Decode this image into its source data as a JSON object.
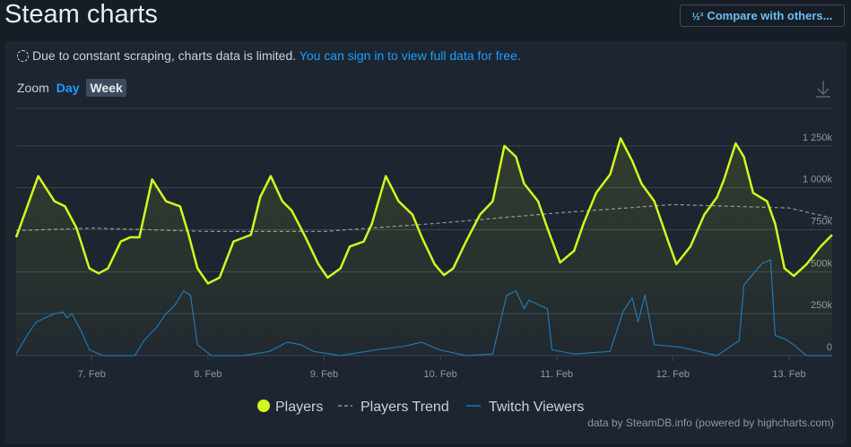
{
  "ui": {
    "title": "Steam charts",
    "compare_icon": "½³",
    "compare_button": "Compare with others...",
    "notice": "Due to constant scraping, charts data is limited.",
    "notice_link": "You can sign in to view full data for free.",
    "zoom_label": "Zoom",
    "zoom_options": [
      "Day",
      "Week"
    ]
  },
  "chart_data": {
    "type": "line",
    "grid": true,
    "legend": "bottom",
    "credit": "data by SteamDB.info (powered by highcharts.com)",
    "xlim": [
      6.35,
      13.37
    ],
    "ylim": [
      0,
      1500000
    ],
    "xticks": [
      {
        "value": 7,
        "label": "7. Feb"
      },
      {
        "value": 8,
        "label": "8. Feb"
      },
      {
        "value": 9,
        "label": "9. Feb"
      },
      {
        "value": 10,
        "label": "10. Feb"
      },
      {
        "value": 11,
        "label": "11. Feb"
      },
      {
        "value": 12,
        "label": "12. Feb"
      },
      {
        "value": 13,
        "label": "13. Feb"
      }
    ],
    "yticks": [
      0,
      {
        "value": 250000,
        "label": "250k"
      },
      {
        "value": 500000,
        "label": "500k"
      },
      {
        "value": 750000,
        "label": "750k"
      },
      {
        "value": 1000000,
        "label": "1 000k"
      },
      {
        "value": 1250000,
        "label": "1 250k"
      }
    ],
    "series": [
      {
        "name": "Players",
        "color": "#d4f81c",
        "style": "solid",
        "fill": true,
        "x": [
          6.35,
          6.54,
          6.68,
          6.77,
          6.87,
          6.98,
          7.06,
          7.14,
          7.25,
          7.33,
          7.41,
          7.52,
          7.64,
          7.76,
          7.83,
          7.91,
          8.0,
          8.1,
          8.22,
          8.37,
          8.45,
          8.54,
          8.64,
          8.72,
          8.84,
          8.95,
          9.03,
          9.14,
          9.22,
          9.34,
          9.41,
          9.53,
          9.64,
          9.76,
          9.84,
          9.95,
          10.03,
          10.11,
          10.22,
          10.34,
          10.45,
          10.55,
          10.65,
          10.72,
          10.84,
          10.92,
          11.03,
          11.15,
          11.23,
          11.34,
          11.46,
          11.55,
          11.65,
          11.73,
          11.84,
          11.96,
          12.03,
          12.15,
          12.27,
          12.38,
          12.44,
          12.54,
          12.61,
          12.69,
          12.81,
          12.88,
          12.96,
          13.04,
          13.15,
          13.27,
          13.37
        ],
        "values": [
          705000,
          1070000,
          920000,
          890000,
          760000,
          520000,
          490000,
          520000,
          680000,
          705000,
          705000,
          1050000,
          920000,
          890000,
          730000,
          520000,
          430000,
          465000,
          680000,
          720000,
          945000,
          1070000,
          920000,
          865000,
          705000,
          545000,
          465000,
          520000,
          650000,
          680000,
          785000,
          1070000,
          920000,
          840000,
          705000,
          545000,
          480000,
          520000,
          680000,
          840000,
          920000,
          1250000,
          1185000,
          1025000,
          920000,
          760000,
          555000,
          625000,
          785000,
          970000,
          1080000,
          1295000,
          1160000,
          1025000,
          920000,
          680000,
          545000,
          650000,
          840000,
          945000,
          1050000,
          1265000,
          1185000,
          970000,
          920000,
          785000,
          520000,
          475000,
          545000,
          650000,
          720000
        ]
      },
      {
        "name": "Players Trend",
        "color": "#8f98a0",
        "style": "dashed",
        "fill": false,
        "x": [
          6.35,
          7,
          8,
          9,
          10,
          11,
          12,
          13,
          13.37
        ],
        "values": [
          745000,
          760000,
          740000,
          740000,
          790000,
          850000,
          900000,
          880000,
          820000
        ]
      },
      {
        "name": "Twitch Viewers",
        "color": "#1a73b8",
        "style": "solid",
        "fill": false,
        "x": [
          6.35,
          6.44,
          6.52,
          6.6,
          6.68,
          6.75,
          6.79,
          6.83,
          6.91,
          6.98,
          7.1,
          7.22,
          7.37,
          7.45,
          7.56,
          7.64,
          7.72,
          7.79,
          7.85,
          7.91,
          8.03,
          8.3,
          8.53,
          8.68,
          8.8,
          8.91,
          9.14,
          9.45,
          9.68,
          9.84,
          9.99,
          10.22,
          10.45,
          10.57,
          10.65,
          10.72,
          10.76,
          10.84,
          10.92,
          10.96,
          11.15,
          11.46,
          11.57,
          11.65,
          11.7,
          11.76,
          11.84,
          12.07,
          12.38,
          12.57,
          12.61,
          12.73,
          12.77,
          12.84,
          12.88,
          12.96,
          13.04,
          13.15,
          13.37
        ],
        "values": [
          10000,
          115000,
          200000,
          225000,
          250000,
          260000,
          225000,
          250000,
          145000,
          35000,
          0,
          0,
          0,
          90000,
          170000,
          250000,
          305000,
          385000,
          360000,
          65000,
          0,
          0,
          25000,
          80000,
          65000,
          25000,
          0,
          35000,
          55000,
          80000,
          35000,
          0,
          10000,
          360000,
          385000,
          280000,
          330000,
          305000,
          280000,
          35000,
          10000,
          25000,
          260000,
          345000,
          200000,
          360000,
          65000,
          50000,
          0,
          90000,
          420000,
          520000,
          550000,
          570000,
          120000,
          100000,
          65000,
          0,
          0
        ]
      }
    ]
  }
}
